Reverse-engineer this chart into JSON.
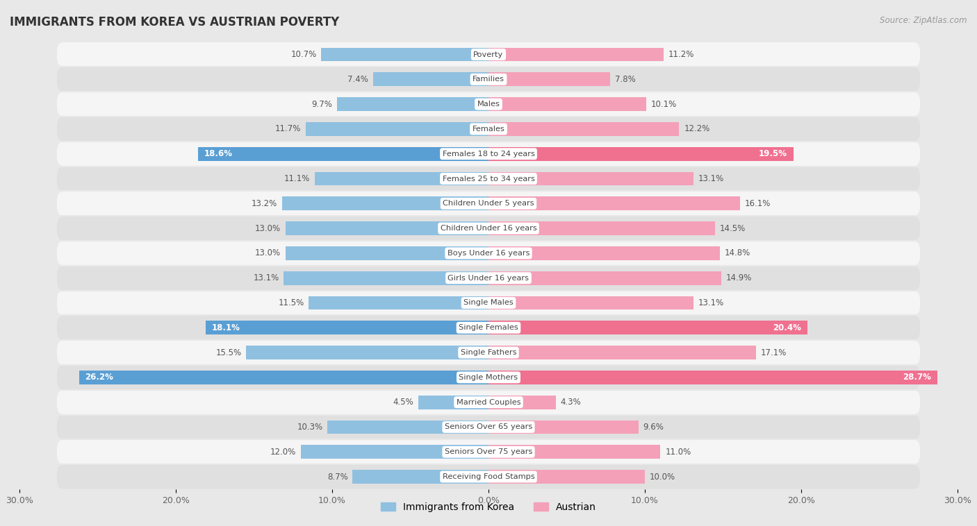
{
  "title": "IMMIGRANTS FROM KOREA VS AUSTRIAN POVERTY",
  "source": "Source: ZipAtlas.com",
  "categories": [
    "Poverty",
    "Families",
    "Males",
    "Females",
    "Females 18 to 24 years",
    "Females 25 to 34 years",
    "Children Under 5 years",
    "Children Under 16 years",
    "Boys Under 16 years",
    "Girls Under 16 years",
    "Single Males",
    "Single Females",
    "Single Fathers",
    "Single Mothers",
    "Married Couples",
    "Seniors Over 65 years",
    "Seniors Over 75 years",
    "Receiving Food Stamps"
  ],
  "korea_values": [
    10.7,
    7.4,
    9.7,
    11.7,
    18.6,
    11.1,
    13.2,
    13.0,
    13.0,
    13.1,
    11.5,
    18.1,
    15.5,
    26.2,
    4.5,
    10.3,
    12.0,
    8.7
  ],
  "austrian_values": [
    11.2,
    7.8,
    10.1,
    12.2,
    19.5,
    13.1,
    16.1,
    14.5,
    14.8,
    14.9,
    13.1,
    20.4,
    17.1,
    28.7,
    4.3,
    9.6,
    11.0,
    10.0
  ],
  "korea_color": "#8fc0e0",
  "austrian_color": "#f4a0b8",
  "korea_highlight_color": "#5a9fd4",
  "austrian_highlight_color": "#f07090",
  "highlight_rows": [
    4,
    11,
    13
  ],
  "xlim": 30,
  "background_color": "#e8e8e8",
  "row_bg_light": "#f5f5f5",
  "row_bg_dark": "#e0e0e0",
  "bar_height": 0.55,
  "label_fontsize": 8.5,
  "title_fontsize": 12,
  "legend_fontsize": 10,
  "axis_tick_fontsize": 9,
  "value_label_color_normal": "#555555",
  "value_label_color_highlight": "#ffffff",
  "cat_label_fontsize": 8.2,
  "cat_label_color": "#444444"
}
